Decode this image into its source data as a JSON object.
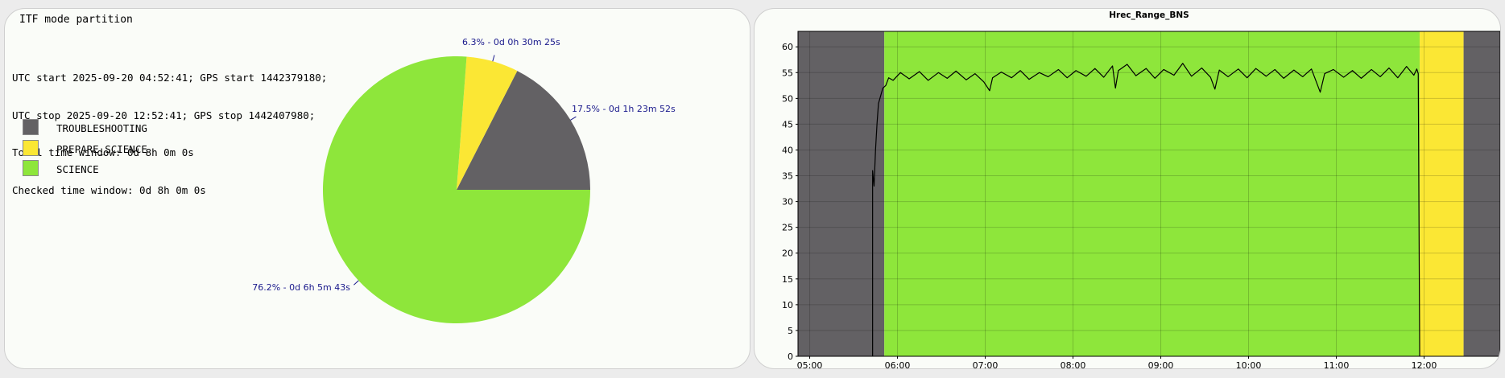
{
  "left_panel": {
    "title": "ITF mode partition",
    "info_lines": [
      "UTC start 2025-09-20 04:52:41; GPS start 1442379180;",
      "UTC stop 2025-09-20 12:52:41; GPS stop 1442407980;",
      "Total time window: 0d 8h 0m 0s",
      "Checked time window: 0d 8h 0m 0s"
    ]
  },
  "chart_data": [
    {
      "type": "pie",
      "title": "",
      "slices": [
        {
          "label": "TROUBLESHOOTING",
          "percent": 17.5,
          "annotation": "17.5% - 0d 1h 23m 52s",
          "color": "#636164"
        },
        {
          "label": "PREPARE_SCIENCE",
          "percent": 6.3,
          "annotation": "6.3% - 0d 0h 30m 25s",
          "color": "#fbe734"
        },
        {
          "label": "SCIENCE",
          "percent": 76.2,
          "annotation": "76.2% - 0d 6h 5m 43s",
          "color": "#8ee63b"
        }
      ],
      "legend": [
        "TROUBLESHOOTING",
        "PREPARE_SCIENCE",
        "SCIENCE"
      ],
      "annotation_color": "#1a1a8c"
    },
    {
      "type": "line",
      "title": "Hrec_Range_BNS",
      "xlabel": "",
      "ylabel": "",
      "x_ticks": [
        "05:00",
        "06:00",
        "07:00",
        "08:00",
        "09:00",
        "10:00",
        "11:00",
        "12:00"
      ],
      "xlim": [
        "04:52",
        "12:52"
      ],
      "y_ticks": [
        "0",
        "5",
        "10",
        "15",
        "20",
        "25",
        "30",
        "35",
        "40",
        "45",
        "50",
        "55",
        "60"
      ],
      "ylim": [
        0,
        63
      ],
      "grid": true,
      "line_color": "#000000",
      "background_bands": [
        {
          "mode": "TROUBLESHOOTING",
          "start": "04:52",
          "end": "05:51",
          "color": "#636164"
        },
        {
          "mode": "SCIENCE",
          "start": "05:51",
          "end": "11:57",
          "color": "#8ee63b"
        },
        {
          "mode": "PREPARE_SCIENCE",
          "start": "11:57",
          "end": "12:27",
          "color": "#fbe734"
        },
        {
          "mode": "TROUBLESHOOTING",
          "start": "12:27",
          "end": "12:52",
          "color": "#636164"
        }
      ],
      "series": [
        {
          "values": [
            [
              "05:43",
              0
            ],
            [
              "05:43",
              36
            ],
            [
              "05:44",
              33
            ],
            [
              "05:45",
              40
            ],
            [
              "05:46",
              45
            ],
            [
              "05:47",
              49
            ],
            [
              "05:49",
              51
            ],
            [
              "05:50",
              52
            ],
            [
              "05:52",
              52.5
            ],
            [
              "05:54",
              54
            ],
            [
              "05:57",
              53.5
            ],
            [
              "06:02",
              55
            ],
            [
              "06:08",
              53.8
            ],
            [
              "06:15",
              55.2
            ],
            [
              "06:21",
              53.5
            ],
            [
              "06:28",
              55
            ],
            [
              "06:34",
              53.9
            ],
            [
              "06:40",
              55.3
            ],
            [
              "06:47",
              53.6
            ],
            [
              "06:53",
              54.8
            ],
            [
              "06:59",
              53.2
            ],
            [
              "07:03",
              51.5
            ],
            [
              "07:05",
              54
            ],
            [
              "07:11",
              55.1
            ],
            [
              "07:18",
              54
            ],
            [
              "07:24",
              55.4
            ],
            [
              "07:30",
              53.7
            ],
            [
              "07:37",
              55
            ],
            [
              "07:43",
              54.2
            ],
            [
              "07:50",
              55.6
            ],
            [
              "07:56",
              54
            ],
            [
              "08:02",
              55.4
            ],
            [
              "08:09",
              54.3
            ],
            [
              "08:15",
              55.8
            ],
            [
              "08:21",
              54.1
            ],
            [
              "08:27",
              56.3
            ],
            [
              "08:29",
              52
            ],
            [
              "08:31",
              55.4
            ],
            [
              "08:37",
              56.6
            ],
            [
              "08:43",
              54.4
            ],
            [
              "08:50",
              55.8
            ],
            [
              "08:56",
              53.9
            ],
            [
              "09:02",
              55.6
            ],
            [
              "09:09",
              54.5
            ],
            [
              "09:15",
              56.8
            ],
            [
              "09:21",
              54.3
            ],
            [
              "09:28",
              55.9
            ],
            [
              "09:34",
              54.1
            ],
            [
              "09:37",
              51.8
            ],
            [
              "09:40",
              55.5
            ],
            [
              "09:46",
              54.2
            ],
            [
              "09:53",
              55.7
            ],
            [
              "09:59",
              54
            ],
            [
              "10:05",
              55.8
            ],
            [
              "10:12",
              54.3
            ],
            [
              "10:18",
              55.6
            ],
            [
              "10:24",
              53.9
            ],
            [
              "10:31",
              55.5
            ],
            [
              "10:37",
              54.2
            ],
            [
              "10:43",
              55.7
            ],
            [
              "10:49",
              51.2
            ],
            [
              "10:52",
              54.8
            ],
            [
              "10:58",
              55.6
            ],
            [
              "11:05",
              54.1
            ],
            [
              "11:11",
              55.4
            ],
            [
              "11:17",
              53.9
            ],
            [
              "11:24",
              55.6
            ],
            [
              "11:30",
              54.2
            ],
            [
              "11:36",
              55.9
            ],
            [
              "11:42",
              54
            ],
            [
              "11:48",
              56.2
            ],
            [
              "11:53",
              54.5
            ],
            [
              "11:55",
              55.7
            ],
            [
              "11:56",
              54.8
            ],
            [
              "11:57",
              0
            ]
          ]
        }
      ]
    }
  ]
}
